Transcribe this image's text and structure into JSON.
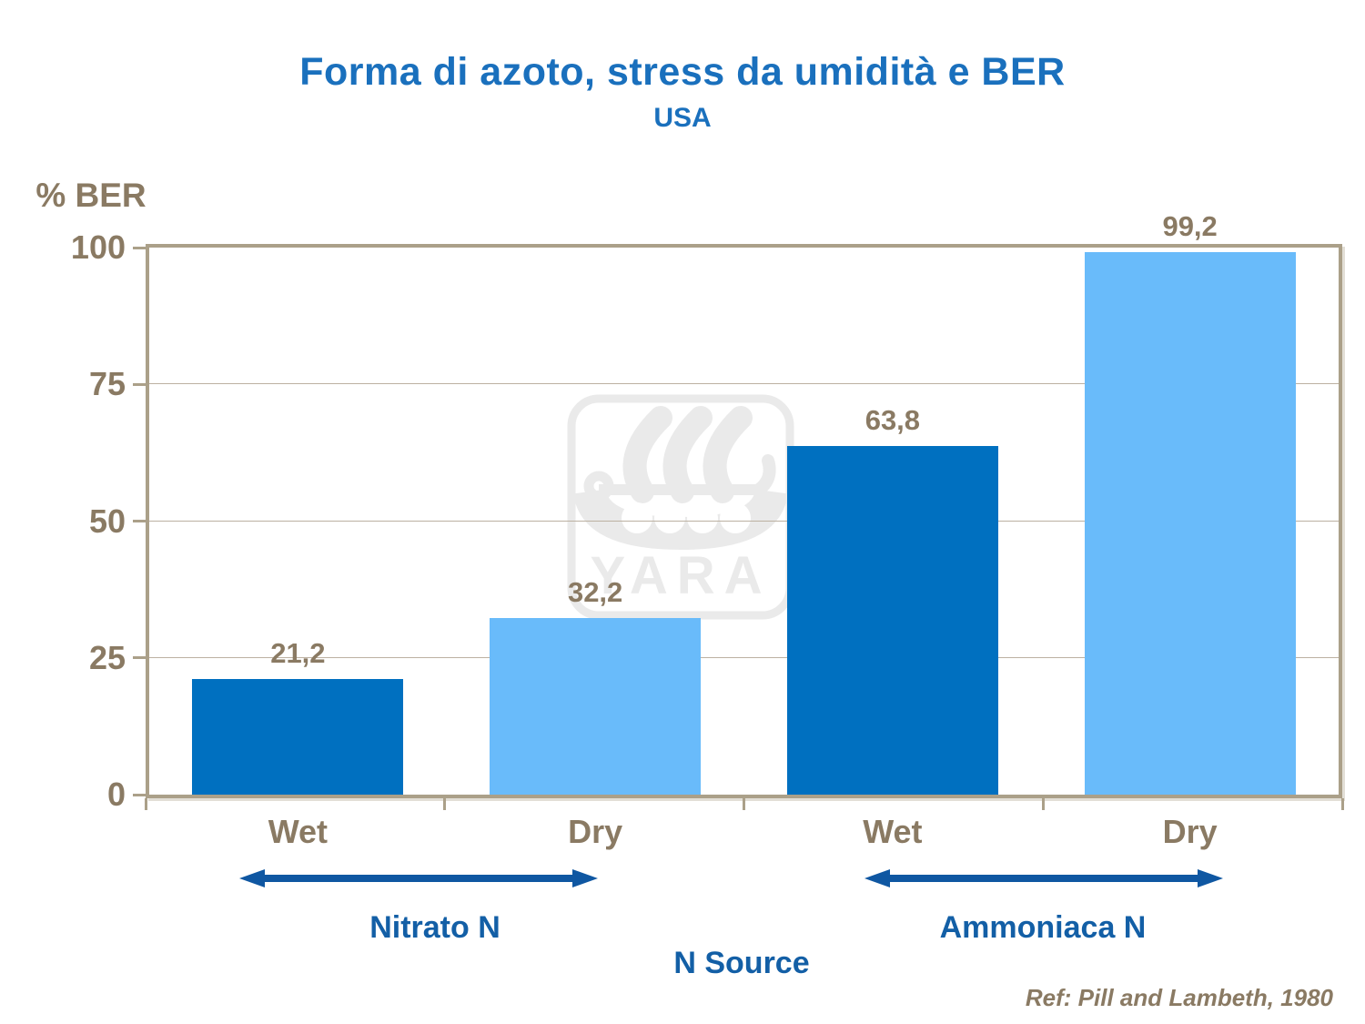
{
  "title": "Forma di azoto, stress da umidità e BER",
  "subtitle": "USA",
  "reference": "Ref: Pill and Lambeth, 1980",
  "watermark": {
    "name": "yara-logo",
    "text": "YARA"
  },
  "colors": {
    "title_blue": "#1a70bd",
    "accent_blue": "#135fa6",
    "arrow_blue": "#0f57a2",
    "text_brown": "#8a7a63",
    "frame": "#aba089",
    "gridline": "#bcb1a2",
    "bar_dark": "#0070c0",
    "bar_light": "#69bbfa",
    "watermark": "#eaeaea"
  },
  "chart_data": {
    "type": "bar",
    "title": "Forma di azoto, stress da umidità e BER",
    "subtitle": "USA",
    "categories": [
      "Wet",
      "Dry",
      "Wet",
      "Dry"
    ],
    "values": [
      21.2,
      32.2,
      63.8,
      99.2
    ],
    "value_labels": [
      "21,2",
      "32,2",
      "63,8",
      "99,2"
    ],
    "bar_colors": [
      "dark",
      "light",
      "dark",
      "light"
    ],
    "groups": [
      {
        "label": "Nitrato N",
        "categories": [
          0,
          1
        ]
      },
      {
        "label": "Ammoniaca N",
        "categories": [
          2,
          3
        ]
      }
    ],
    "xlabel": "N Source",
    "ylabel": "% BER",
    "ylim": [
      0,
      100
    ],
    "yticks": [
      0,
      25,
      50,
      75,
      100
    ],
    "grid": true,
    "legend": false
  }
}
